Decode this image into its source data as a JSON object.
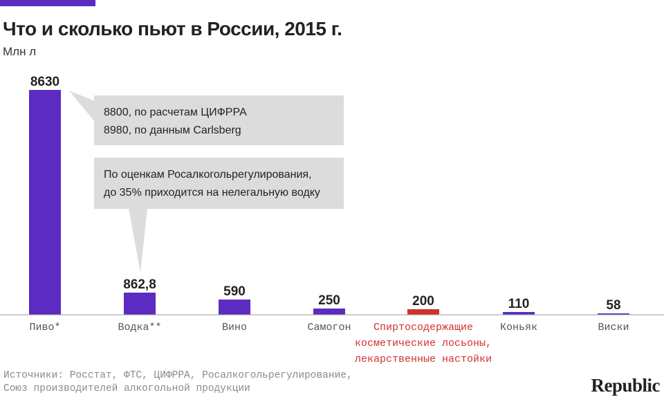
{
  "header": {
    "title": "Что и сколько пьют в России, 2015 г.",
    "unit": "Млн л"
  },
  "colors": {
    "accent": "#5b2bc2",
    "bar": "#5b2bc2",
    "highlight": "#d0312d",
    "axis_label": "#555555",
    "callout_bg": "#dcdcdc"
  },
  "chart_data": {
    "type": "bar",
    "title": "Что и сколько пьют в России, 2015 г.",
    "ylabel": "Млн л",
    "categories": [
      "Пиво*",
      "Водка**",
      "Вино",
      "Самогон",
      "Спиртосодержащие косметические лосьоны, лекарственные настойки",
      "Коньяк",
      "Виски"
    ],
    "category_lines": [
      [
        "Пиво*"
      ],
      [
        "Водка**"
      ],
      [
        "Вино"
      ],
      [
        "Самогон"
      ],
      [
        "Спиртосодержащие",
        "косметические лосьоны,",
        "лекарственные настойки"
      ],
      [
        "Коньяк"
      ],
      [
        "Виски"
      ]
    ],
    "values": [
      8630,
      862.8,
      590,
      250,
      200,
      110,
      58
    ],
    "value_labels": [
      "8630",
      "862,8",
      "590",
      "250",
      "200",
      "110",
      "58"
    ],
    "highlighted_index": 4,
    "ylim": [
      0,
      8630
    ],
    "grid": false,
    "legend": "none"
  },
  "annotations": {
    "beer": {
      "line1": "8800, по расчетам ЦИФРРА",
      "line2": "8980, по данным Carlsberg"
    },
    "vodka": {
      "line1": "По оценкам Росалкогольрегулирования,",
      "line2": "до 35% приходится на нелегальную водку"
    }
  },
  "footer": {
    "sources_line1": "Источники: Росстат, ФТС, ЦИФРРА, Росалкогольрегулирование,",
    "sources_line2": "Союз производителей алкогольной продукции",
    "brand": "Republic"
  }
}
